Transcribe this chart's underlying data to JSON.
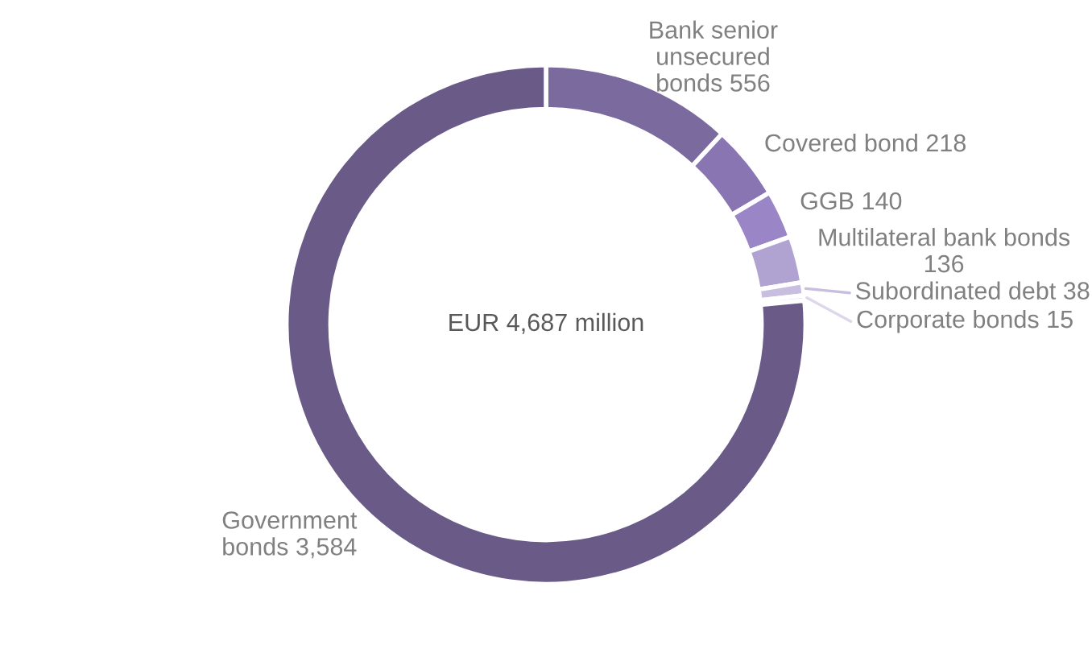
{
  "chart_data": {
    "type": "donut",
    "categories": [
      "Bank senior\nunsecured\nbonds",
      "Covered bond",
      "GGB",
      "Multilateral bank bonds",
      "Subordinated debt",
      "Corporate bonds",
      "Government\nbonds"
    ],
    "values": [
      556,
      218,
      140,
      136,
      38,
      15,
      3584
    ],
    "value_labels": [
      "556",
      "218",
      "140",
      "136",
      "38",
      "15",
      "3,584"
    ],
    "colors": [
      "#7b6a9e",
      "#8975b2",
      "#9a86c6",
      "#b0a3d1",
      "#c8bfe0",
      "#ddd6ec",
      "#6a5a88"
    ],
    "annotations": [
      "EUR 4,687 million"
    ]
  }
}
